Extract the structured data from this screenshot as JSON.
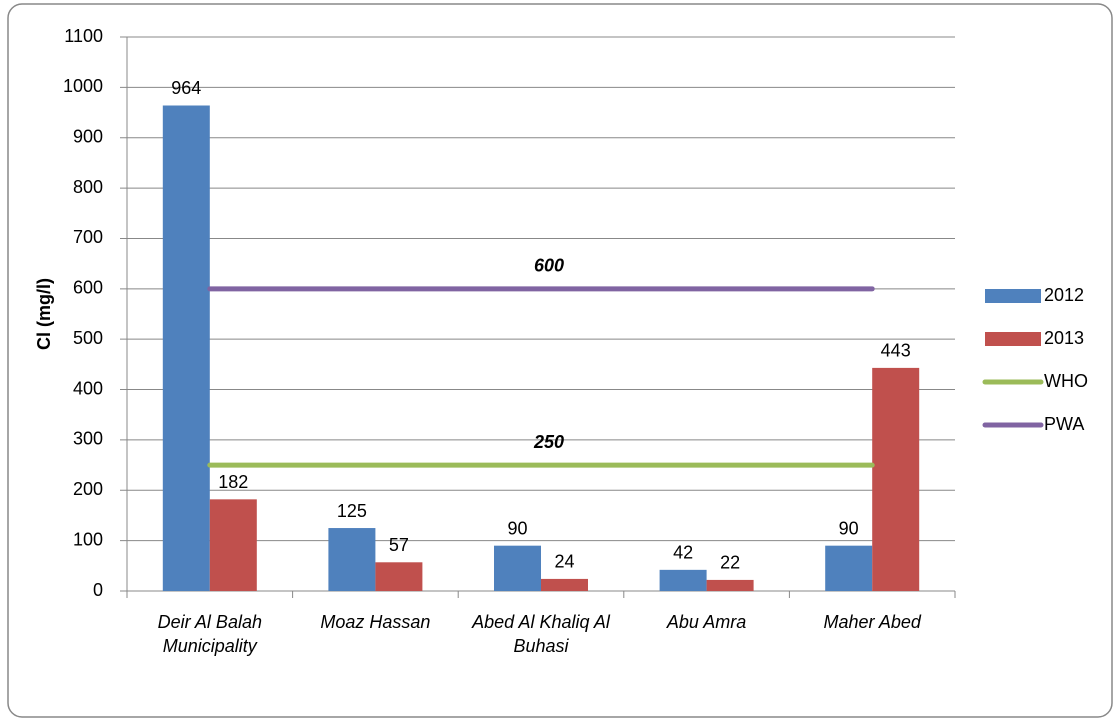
{
  "chart_data": {
    "type": "bar",
    "y_label": "Cl (mg/l)",
    "categories": [
      "Deir Al Balah Municipality",
      "Moaz Hassan",
      "Abed Al Khaliq Al Buhasi",
      "Abu Amra",
      "Maher Abed"
    ],
    "series": [
      {
        "name": "2012",
        "type": "bar",
        "color": "#4f81bd",
        "values": [
          964,
          125,
          90,
          42,
          90
        ]
      },
      {
        "name": "2013",
        "type": "bar",
        "color": "#c0504d",
        "values": [
          182,
          57,
          24,
          22,
          443
        ]
      },
      {
        "name": "WHO",
        "type": "line",
        "color": "#9bbb59",
        "values": [
          250,
          250,
          250,
          250,
          250
        ],
        "labeled_point": 2
      },
      {
        "name": "PWA",
        "type": "line",
        "color": "#8064a2",
        "values": [
          600,
          600,
          600,
          600,
          600
        ],
        "labeled_point": 2
      }
    ],
    "ylim": [
      0,
      1100
    ],
    "yticks": [
      0,
      100,
      200,
      300,
      400,
      500,
      600,
      700,
      800,
      900,
      1000,
      1100
    ],
    "grid": true,
    "legend": "right"
  }
}
